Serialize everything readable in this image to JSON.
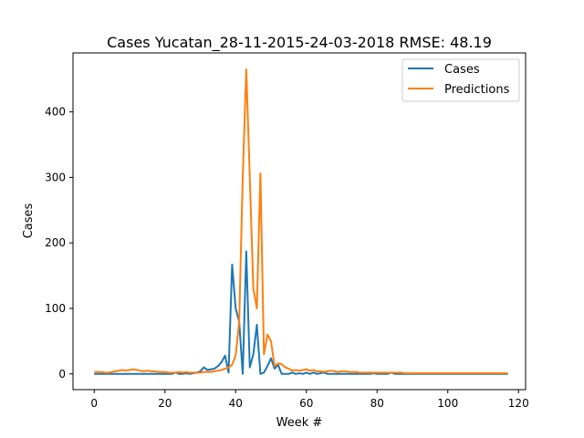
{
  "chart_data": {
    "type": "line",
    "title": "Cases Yucatan_28-11-2015-24-03-2018 RMSE: 48.19",
    "xlabel": "Week #",
    "ylabel": "Cases",
    "xlim": [
      -6,
      122
    ],
    "ylim": [
      -24,
      490
    ],
    "xticks": [
      0,
      20,
      40,
      60,
      80,
      100,
      120
    ],
    "yticks": [
      0,
      100,
      200,
      300,
      400
    ],
    "grid": false,
    "legend": "top-right",
    "series": [
      {
        "name": "Cases",
        "color": "#1f77b4",
        "x": [
          0,
          1,
          2,
          3,
          4,
          5,
          6,
          7,
          8,
          9,
          10,
          11,
          12,
          13,
          14,
          15,
          16,
          17,
          18,
          19,
          20,
          21,
          22,
          23,
          24,
          25,
          26,
          27,
          28,
          29,
          30,
          31,
          32,
          33,
          34,
          35,
          36,
          37,
          38,
          39,
          40,
          41,
          42,
          43,
          44,
          45,
          46,
          47,
          48,
          49,
          50,
          51,
          52,
          53,
          54,
          55,
          56,
          57,
          58,
          59,
          60,
          61,
          62,
          63,
          64,
          65,
          66,
          67,
          68,
          69,
          70,
          71,
          72,
          73,
          74,
          75,
          76,
          77,
          78,
          79,
          80,
          81,
          82,
          83,
          84,
          85,
          86,
          87,
          88,
          89,
          90,
          91,
          92,
          93,
          94,
          95,
          96,
          97,
          98,
          99,
          100,
          101,
          102,
          103,
          104,
          105,
          106,
          107,
          108,
          109,
          110,
          111,
          112,
          113,
          114,
          115,
          116,
          117
        ],
        "values": [
          0,
          0,
          0,
          0,
          0,
          0,
          0,
          0,
          0,
          0,
          0,
          0,
          0,
          0,
          0,
          0,
          0,
          0,
          0,
          0,
          0,
          0,
          0,
          2,
          0,
          0,
          1,
          0,
          1,
          2,
          4,
          10,
          6,
          7,
          8,
          12,
          18,
          28,
          2,
          167,
          100,
          80,
          0,
          187,
          10,
          30,
          75,
          0,
          2,
          12,
          24,
          8,
          14,
          0,
          0,
          0,
          2,
          0,
          1,
          0,
          2,
          0,
          2,
          0,
          1,
          2,
          0,
          0,
          0,
          0,
          0,
          0,
          0,
          0,
          0,
          0,
          0,
          0,
          0,
          1,
          0,
          0,
          0,
          0,
          2,
          0,
          0,
          0,
          0,
          0,
          0,
          0,
          0,
          0,
          0,
          0,
          0,
          0,
          0,
          0,
          0,
          0,
          0,
          0,
          0,
          0,
          0,
          0,
          0,
          0,
          0,
          0,
          0,
          0,
          0,
          0,
          0,
          0
        ]
      },
      {
        "name": "Predictions",
        "color": "#ff7f0e",
        "x": [
          0,
          1,
          2,
          3,
          4,
          5,
          6,
          7,
          8,
          9,
          10,
          11,
          12,
          13,
          14,
          15,
          16,
          17,
          18,
          19,
          20,
          21,
          22,
          23,
          24,
          25,
          26,
          27,
          28,
          29,
          30,
          31,
          32,
          33,
          34,
          35,
          36,
          37,
          38,
          39,
          40,
          41,
          42,
          43,
          44,
          45,
          46,
          47,
          48,
          49,
          50,
          51,
          52,
          53,
          54,
          55,
          56,
          57,
          58,
          59,
          60,
          61,
          62,
          63,
          64,
          65,
          66,
          67,
          68,
          69,
          70,
          71,
          72,
          73,
          74,
          75,
          76,
          77,
          78,
          79,
          80,
          81,
          82,
          83,
          84,
          85,
          86,
          87,
          88,
          89,
          90,
          91,
          92,
          93,
          94,
          95,
          96,
          97,
          98,
          99,
          100,
          101,
          102,
          103,
          104,
          105,
          106,
          107,
          108,
          109,
          110,
          111,
          112,
          113,
          114,
          115,
          116,
          117
        ],
        "values": [
          3,
          3,
          3,
          2,
          2,
          3,
          4,
          5,
          6,
          5,
          6,
          7,
          6,
          5,
          4,
          5,
          4,
          4,
          3,
          3,
          3,
          2,
          2,
          2,
          3,
          2,
          3,
          2,
          2,
          2,
          2,
          3,
          3,
          3,
          4,
          5,
          6,
          8,
          10,
          14,
          28,
          80,
          300,
          465,
          300,
          130,
          100,
          306,
          30,
          60,
          50,
          12,
          16,
          15,
          10,
          8,
          5,
          6,
          5,
          6,
          7,
          5,
          6,
          4,
          4,
          3,
          4,
          5,
          4,
          3,
          4,
          4,
          3,
          3,
          3,
          2,
          2,
          2,
          2,
          2,
          2,
          2,
          2,
          2,
          2,
          2,
          2,
          2,
          1,
          1,
          1,
          1,
          1,
          1,
          1,
          1,
          1,
          1,
          1,
          1,
          1,
          1,
          1,
          1,
          1,
          1,
          1,
          1,
          1,
          1,
          1,
          1,
          1,
          1,
          1,
          1,
          1,
          1
        ]
      }
    ]
  }
}
